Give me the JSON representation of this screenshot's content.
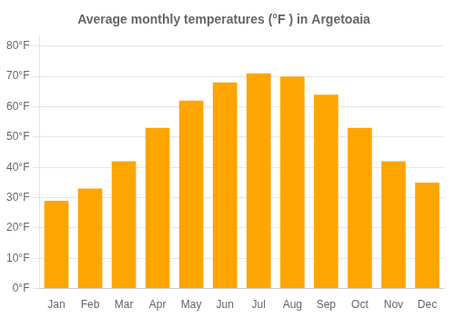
{
  "chart_data": {
    "type": "bar",
    "title": "Average monthly temperatures (°F ) in Argetoaia",
    "categories": [
      "Jan",
      "Feb",
      "Mar",
      "Apr",
      "May",
      "Jun",
      "Jul",
      "Aug",
      "Sep",
      "Oct",
      "Nov",
      "Dec"
    ],
    "values": [
      29,
      33,
      42,
      53,
      62,
      68,
      71,
      70,
      64,
      53,
      42,
      35
    ],
    "color": "#FFA500",
    "ylim": [
      0,
      83
    ],
    "yticks": [
      {
        "value": 0,
        "label": "0°F"
      },
      {
        "value": 10,
        "label": "10°F"
      },
      {
        "value": 20,
        "label": "20°F"
      },
      {
        "value": 30,
        "label": "30°F"
      },
      {
        "value": 40,
        "label": "40°F"
      },
      {
        "value": 50,
        "label": "50°F"
      },
      {
        "value": 60,
        "label": "60°F"
      },
      {
        "value": 70,
        "label": "70°F"
      },
      {
        "value": 80,
        "label": "80°F"
      }
    ],
    "grid": true
  }
}
